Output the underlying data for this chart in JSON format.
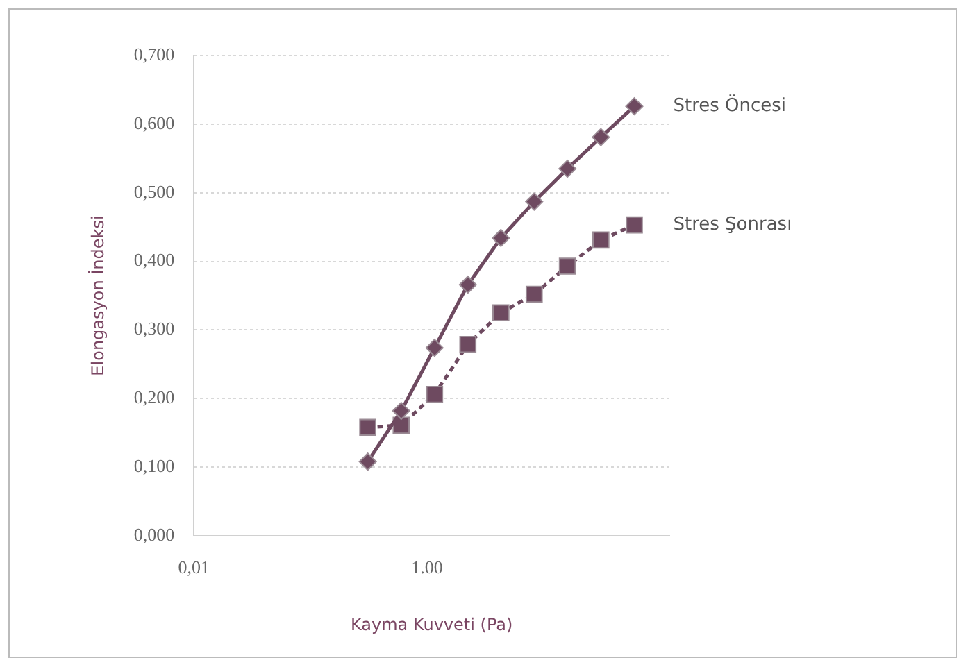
{
  "chart_data": {
    "type": "line",
    "xlabel": "Kayma Kuvveti (Pa)",
    "ylabel": "Elongasyon İndeksi",
    "log": "x",
    "grid": "y",
    "legend": false,
    "x": [
      0.31,
      0.6,
      1.16,
      2.24,
      4.3,
      8.3,
      16,
      31,
      60
    ],
    "xlim": [
      0.01,
      120
    ],
    "xticks": [
      {
        "value": 0.01,
        "label": "0,01"
      },
      {
        "value": 1,
        "label": "1.00"
      }
    ],
    "ylim": [
      0,
      0.7
    ],
    "yticks": [
      {
        "value": 0,
        "label": "0,000"
      },
      {
        "value": 0.1,
        "label": "0,100"
      },
      {
        "value": 0.2,
        "label": "0,200"
      },
      {
        "value": 0.3,
        "label": "0,300"
      },
      {
        "value": 0.4,
        "label": "0,400"
      },
      {
        "value": 0.5,
        "label": "0,500"
      },
      {
        "value": 0.6,
        "label": "0,600"
      },
      {
        "value": 0.7,
        "label": "0,700"
      }
    ],
    "series": [
      {
        "name": "Stres Öncesi",
        "color": "#6e4a60",
        "marker": "diamond",
        "line_style": "solid",
        "values": [
          0.108,
          0.182,
          0.274,
          0.366,
          0.434,
          0.487,
          0.535,
          0.581,
          0.626
        ]
      },
      {
        "name": "Stres Şonrası",
        "color": "#6e4a60",
        "marker": "square",
        "line_style": "dashed",
        "values": [
          0.158,
          0.161,
          0.206,
          0.279,
          0.325,
          0.352,
          0.393,
          0.431,
          0.453
        ]
      }
    ]
  }
}
